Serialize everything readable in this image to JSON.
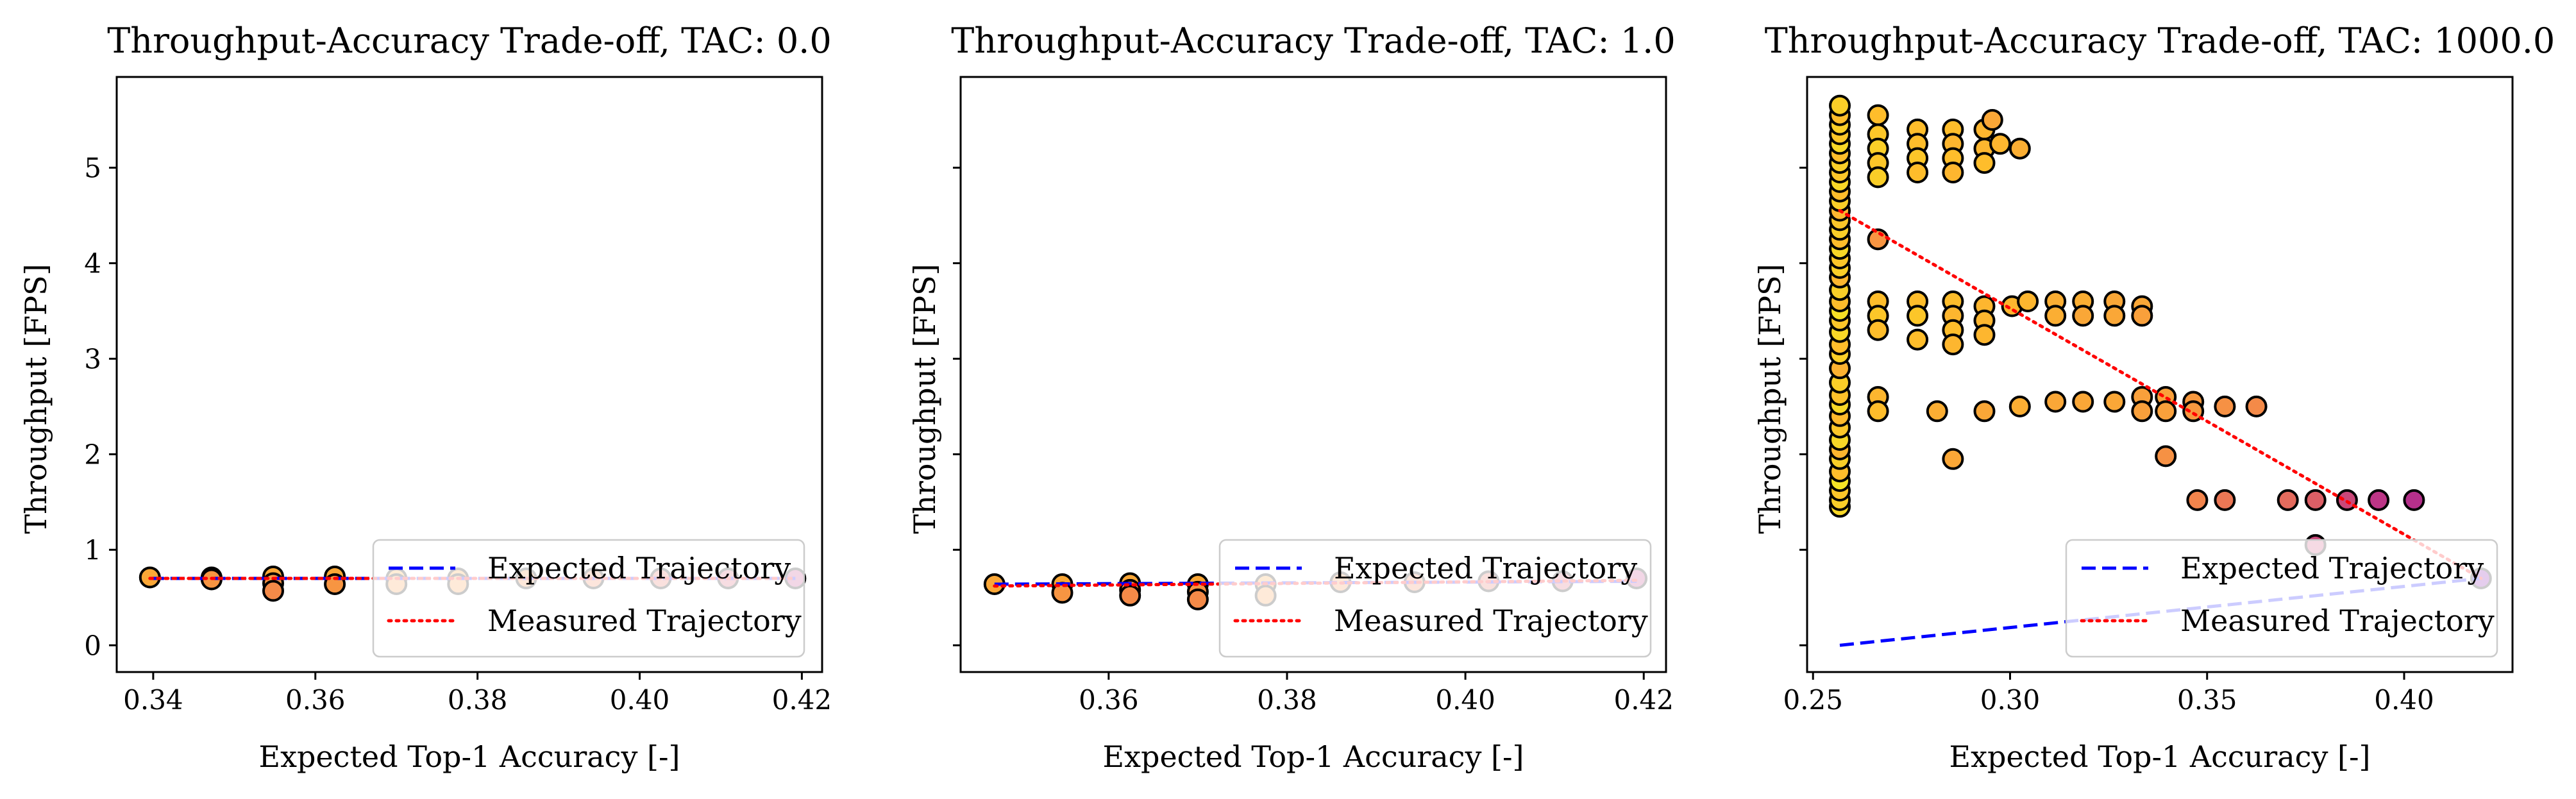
{
  "figure": {
    "background": "#ffffff"
  },
  "chart_data": [
    {
      "type": "scatter",
      "title": "Throughput-Accuracy Trade-off, TAC: 0.0",
      "xlabel": "Expected Top-1 Accuracy [-]",
      "ylabel": "Throughput [FPS]",
      "xlim": [
        0.3355,
        0.4225
      ],
      "ylim": [
        -0.28,
        5.95
      ],
      "xticks": [
        0.34,
        0.36,
        0.38,
        0.4,
        0.42
      ],
      "xtick_labels": [
        "0.34",
        "0.36",
        "0.38",
        "0.40",
        "0.42"
      ],
      "yticks": [
        0,
        1,
        2,
        3,
        4,
        5
      ],
      "ytick_labels": [
        "0",
        "1",
        "2",
        "3",
        "4",
        "5"
      ],
      "grid": false,
      "legend_position": "lower-right",
      "legend": [
        {
          "label": "Expected Trajectory",
          "color": "#0000ff",
          "style": "dashed"
        },
        {
          "label": "Measured Trajectory",
          "color": "#ff0000",
          "style": "dotted"
        }
      ],
      "colormap": "plasma",
      "points": [
        {
          "x": 0.3396,
          "y": 0.71,
          "c": 0.8
        },
        {
          "x": 0.3472,
          "y": 0.71,
          "c": 0.8
        },
        {
          "x": 0.3472,
          "y": 0.69,
          "c": 0.75
        },
        {
          "x": 0.3548,
          "y": 0.72,
          "c": 0.8
        },
        {
          "x": 0.3548,
          "y": 0.65,
          "c": 0.75
        },
        {
          "x": 0.3548,
          "y": 0.57,
          "c": 0.72
        },
        {
          "x": 0.3624,
          "y": 0.72,
          "c": 0.8
        },
        {
          "x": 0.3624,
          "y": 0.64,
          "c": 0.75
        },
        {
          "x": 0.37,
          "y": 0.7,
          "c": 0.8
        },
        {
          "x": 0.37,
          "y": 0.64,
          "c": 0.75
        },
        {
          "x": 0.3776,
          "y": 0.7,
          "c": 0.78
        },
        {
          "x": 0.3776,
          "y": 0.64,
          "c": 0.75
        },
        {
          "x": 0.386,
          "y": 0.7,
          "c": 0.72
        },
        {
          "x": 0.3943,
          "y": 0.7,
          "c": 0.68
        },
        {
          "x": 0.4026,
          "y": 0.7,
          "c": 0.62
        },
        {
          "x": 0.4109,
          "y": 0.7,
          "c": 0.55
        },
        {
          "x": 0.4192,
          "y": 0.7,
          "c": 0.45
        }
      ],
      "expected_trajectory": {
        "x": [
          0.3396,
          0.4192
        ],
        "y": [
          0.7,
          0.7
        ]
      },
      "measured_trajectory": {
        "x": [
          0.3396,
          0.4192
        ],
        "y": [
          0.7,
          0.7
        ]
      }
    },
    {
      "type": "scatter",
      "title": "Throughput-Accuracy Trade-off, TAC: 1.0",
      "xlabel": "Expected Top-1 Accuracy [-]",
      "ylabel": "Throughput [FPS]",
      "xlim": [
        0.3434,
        0.4225
      ],
      "ylim": [
        -0.28,
        5.95
      ],
      "xticks": [
        0.36,
        0.38,
        0.4,
        0.42
      ],
      "xtick_labels": [
        "0.36",
        "0.38",
        "0.40",
        "0.42"
      ],
      "yticks": [
        0,
        1,
        2,
        3,
        4,
        5
      ],
      "ytick_labels": [],
      "grid": false,
      "legend_position": "lower-right",
      "legend": [
        {
          "label": "Expected Trajectory",
          "color": "#0000ff",
          "style": "dashed"
        },
        {
          "label": "Measured Trajectory",
          "color": "#ff0000",
          "style": "dotted"
        }
      ],
      "colormap": "plasma",
      "points": [
        {
          "x": 0.3472,
          "y": 0.64,
          "c": 0.8
        },
        {
          "x": 0.3548,
          "y": 0.64,
          "c": 0.8
        },
        {
          "x": 0.3548,
          "y": 0.55,
          "c": 0.75
        },
        {
          "x": 0.3624,
          "y": 0.65,
          "c": 0.8
        },
        {
          "x": 0.3624,
          "y": 0.58,
          "c": 0.75
        },
        {
          "x": 0.3624,
          "y": 0.52,
          "c": 0.72
        },
        {
          "x": 0.37,
          "y": 0.64,
          "c": 0.8
        },
        {
          "x": 0.37,
          "y": 0.56,
          "c": 0.75
        },
        {
          "x": 0.37,
          "y": 0.48,
          "c": 0.72
        },
        {
          "x": 0.3776,
          "y": 0.64,
          "c": 0.78
        },
        {
          "x": 0.3776,
          "y": 0.52,
          "c": 0.75
        },
        {
          "x": 0.386,
          "y": 0.66,
          "c": 0.72
        },
        {
          "x": 0.3943,
          "y": 0.66,
          "c": 0.68
        },
        {
          "x": 0.4026,
          "y": 0.67,
          "c": 0.62
        },
        {
          "x": 0.4109,
          "y": 0.67,
          "c": 0.55
        },
        {
          "x": 0.4192,
          "y": 0.7,
          "c": 0.45
        }
      ],
      "expected_trajectory": {
        "x": [
          0.3472,
          0.4192
        ],
        "y": [
          0.64,
          0.67
        ]
      },
      "measured_trajectory": {
        "x": [
          0.3472,
          0.4192
        ],
        "y": [
          0.62,
          0.68
        ]
      }
    },
    {
      "type": "scatter",
      "title": "Throughput-Accuracy Trade-off, TAC: 1000.0",
      "xlabel": "Expected Top-1 Accuracy [-]",
      "ylabel": "Throughput [FPS]",
      "xlim": [
        0.2485,
        0.4275
      ],
      "ylim": [
        -0.28,
        5.95
      ],
      "xticks": [
        0.25,
        0.3,
        0.35,
        0.4
      ],
      "xtick_labels": [
        "0.25",
        "0.30",
        "0.35",
        "0.40"
      ],
      "yticks": [
        0,
        1,
        2,
        3,
        4,
        5
      ],
      "ytick_labels": [],
      "grid": false,
      "legend_position": "lower-right",
      "legend": [
        {
          "label": "Expected Trajectory",
          "color": "#0000ff",
          "style": "dashed"
        },
        {
          "label": "Measured Trajectory",
          "color": "#ff0000",
          "style": "dotted"
        }
      ],
      "colormap": "plasma",
      "column_points": {
        "x": 0.2568,
        "y": [
          1.45,
          1.52,
          1.62,
          1.72,
          1.82,
          1.95,
          2.05,
          2.15,
          2.28,
          2.4,
          2.52,
          2.62,
          2.75,
          2.9,
          3.05,
          3.15,
          3.28,
          3.4,
          3.5,
          3.6,
          3.72,
          3.85,
          3.95,
          4.05,
          4.15,
          4.25,
          4.35,
          4.45,
          4.55,
          4.65,
          4.75,
          4.85,
          4.95,
          5.05,
          5.15,
          5.25,
          5.35,
          5.45,
          5.55,
          5.65
        ],
        "c": [
          0.92,
          0.9,
          0.88,
          0.95,
          0.86,
          0.9,
          0.84,
          0.92,
          0.88,
          0.85,
          0.92,
          0.87,
          0.9,
          0.83,
          0.9,
          0.86,
          0.92,
          0.88,
          0.94,
          0.86,
          0.9,
          0.84,
          0.9,
          0.88,
          0.92,
          0.86,
          0.9,
          0.88,
          0.84,
          0.9,
          0.86,
          0.92,
          0.88,
          0.9,
          0.86,
          0.92,
          0.88,
          0.9,
          0.86,
          0.9
        ]
      },
      "points": [
        {
          "x": 0.2665,
          "y": 5.55,
          "c": 0.86
        },
        {
          "x": 0.2665,
          "y": 5.35,
          "c": 0.88
        },
        {
          "x": 0.2665,
          "y": 5.2,
          "c": 0.9
        },
        {
          "x": 0.2665,
          "y": 5.05,
          "c": 0.88
        },
        {
          "x": 0.2665,
          "y": 4.9,
          "c": 0.9
        },
        {
          "x": 0.2665,
          "y": 4.25,
          "c": 0.75
        },
        {
          "x": 0.2665,
          "y": 3.6,
          "c": 0.86
        },
        {
          "x": 0.2665,
          "y": 3.45,
          "c": 0.88
        },
        {
          "x": 0.2665,
          "y": 3.3,
          "c": 0.86
        },
        {
          "x": 0.2665,
          "y": 2.6,
          "c": 0.84
        },
        {
          "x": 0.2665,
          "y": 2.45,
          "c": 0.86
        },
        {
          "x": 0.2765,
          "y": 5.4,
          "c": 0.86
        },
        {
          "x": 0.2765,
          "y": 5.25,
          "c": 0.86
        },
        {
          "x": 0.2765,
          "y": 5.1,
          "c": 0.88
        },
        {
          "x": 0.2765,
          "y": 4.95,
          "c": 0.86
        },
        {
          "x": 0.2765,
          "y": 3.6,
          "c": 0.86
        },
        {
          "x": 0.2765,
          "y": 3.45,
          "c": 0.88
        },
        {
          "x": 0.2765,
          "y": 3.2,
          "c": 0.86
        },
        {
          "x": 0.2855,
          "y": 5.4,
          "c": 0.86
        },
        {
          "x": 0.2855,
          "y": 5.25,
          "c": 0.84
        },
        {
          "x": 0.2855,
          "y": 5.1,
          "c": 0.86
        },
        {
          "x": 0.2855,
          "y": 4.95,
          "c": 0.84
        },
        {
          "x": 0.2855,
          "y": 3.6,
          "c": 0.86
        },
        {
          "x": 0.2855,
          "y": 3.45,
          "c": 0.84
        },
        {
          "x": 0.2855,
          "y": 3.3,
          "c": 0.86
        },
        {
          "x": 0.2855,
          "y": 3.15,
          "c": 0.84
        },
        {
          "x": 0.2815,
          "y": 2.45,
          "c": 0.82
        },
        {
          "x": 0.2855,
          "y": 1.95,
          "c": 0.8
        },
        {
          "x": 0.2935,
          "y": 5.4,
          "c": 0.84
        },
        {
          "x": 0.2935,
          "y": 5.2,
          "c": 0.84
        },
        {
          "x": 0.2935,
          "y": 5.05,
          "c": 0.86
        },
        {
          "x": 0.2935,
          "y": 3.55,
          "c": 0.84
        },
        {
          "x": 0.2935,
          "y": 3.4,
          "c": 0.84
        },
        {
          "x": 0.2935,
          "y": 3.25,
          "c": 0.84
        },
        {
          "x": 0.2935,
          "y": 2.45,
          "c": 0.8
        },
        {
          "x": 0.2955,
          "y": 5.5,
          "c": 0.8
        },
        {
          "x": 0.2975,
          "y": 5.25,
          "c": 0.84
        },
        {
          "x": 0.3025,
          "y": 5.2,
          "c": 0.82
        },
        {
          "x": 0.3005,
          "y": 3.55,
          "c": 0.84
        },
        {
          "x": 0.3045,
          "y": 3.6,
          "c": 0.84
        },
        {
          "x": 0.3025,
          "y": 2.5,
          "c": 0.82
        },
        {
          "x": 0.3115,
          "y": 3.6,
          "c": 0.82
        },
        {
          "x": 0.3115,
          "y": 3.45,
          "c": 0.82
        },
        {
          "x": 0.3115,
          "y": 2.55,
          "c": 0.8
        },
        {
          "x": 0.3185,
          "y": 3.6,
          "c": 0.82
        },
        {
          "x": 0.3185,
          "y": 3.45,
          "c": 0.8
        },
        {
          "x": 0.3185,
          "y": 2.55,
          "c": 0.8
        },
        {
          "x": 0.3265,
          "y": 3.6,
          "c": 0.8
        },
        {
          "x": 0.3265,
          "y": 3.45,
          "c": 0.8
        },
        {
          "x": 0.3265,
          "y": 2.55,
          "c": 0.8
        },
        {
          "x": 0.3335,
          "y": 3.55,
          "c": 0.8
        },
        {
          "x": 0.3335,
          "y": 3.45,
          "c": 0.78
        },
        {
          "x": 0.3335,
          "y": 2.6,
          "c": 0.78
        },
        {
          "x": 0.3335,
          "y": 2.45,
          "c": 0.78
        },
        {
          "x": 0.3395,
          "y": 2.6,
          "c": 0.78
        },
        {
          "x": 0.3395,
          "y": 2.45,
          "c": 0.78
        },
        {
          "x": 0.3395,
          "y": 1.98,
          "c": 0.74
        },
        {
          "x": 0.3465,
          "y": 2.55,
          "c": 0.76
        },
        {
          "x": 0.3465,
          "y": 2.45,
          "c": 0.76
        },
        {
          "x": 0.3545,
          "y": 2.5,
          "c": 0.74
        },
        {
          "x": 0.3625,
          "y": 2.5,
          "c": 0.72
        },
        {
          "x": 0.3475,
          "y": 1.52,
          "c": 0.7
        },
        {
          "x": 0.3545,
          "y": 1.52,
          "c": 0.66
        },
        {
          "x": 0.3705,
          "y": 1.52,
          "c": 0.62
        },
        {
          "x": 0.3775,
          "y": 1.52,
          "c": 0.58
        },
        {
          "x": 0.3775,
          "y": 1.05,
          "c": 0.5
        },
        {
          "x": 0.3855,
          "y": 1.52,
          "c": 0.5
        },
        {
          "x": 0.3935,
          "y": 1.52,
          "c": 0.44
        },
        {
          "x": 0.4025,
          "y": 1.52,
          "c": 0.42
        },
        {
          "x": 0.4195,
          "y": 0.7,
          "c": 0.25
        }
      ],
      "expected_trajectory": {
        "x": [
          0.2568,
          0.4195
        ],
        "y": [
          0.0,
          0.7
        ]
      },
      "measured_trajectory": {
        "x": [
          0.2568,
          0.4195
        ],
        "y": [
          4.55,
          0.7
        ]
      }
    }
  ]
}
